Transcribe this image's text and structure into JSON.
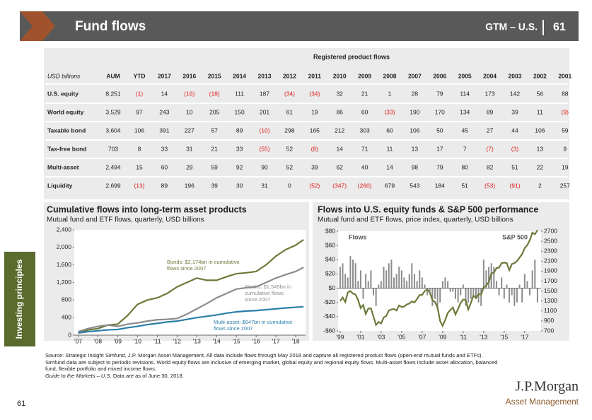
{
  "header": {
    "title": "Fund flows",
    "series": "GTM – U.S.",
    "page": "61"
  },
  "side_tab": "Investing principles",
  "table": {
    "header": "Registered product flows",
    "columns": [
      "USD billions",
      "AUM",
      "YTD",
      "2017",
      "2016",
      "2015",
      "2014",
      "2013",
      "2012",
      "2011",
      "2010",
      "2009",
      "2008",
      "2007",
      "2006",
      "2005",
      "2004",
      "2003",
      "2002",
      "2001"
    ],
    "rows": [
      [
        "U.S. equity",
        "8,251",
        "(1)",
        "14",
        "(16)",
        "(18)",
        "111",
        "187",
        "(34)",
        "(34)",
        "32",
        "21",
        "1",
        "28",
        "79",
        "114",
        "173",
        "142",
        "56",
        "88"
      ],
      [
        "World equity",
        "3,529",
        "97",
        "243",
        "10",
        "205",
        "150",
        "201",
        "61",
        "19",
        "86",
        "60",
        "(33)",
        "190",
        "170",
        "134",
        "89",
        "39",
        "11",
        "(9)"
      ],
      [
        "Taxable bond",
        "3,604",
        "106",
        "391",
        "227",
        "57",
        "89",
        "(10)",
        "298",
        "165",
        "212",
        "303",
        "60",
        "106",
        "50",
        "45",
        "27",
        "44",
        "106",
        "59"
      ],
      [
        "Tax-free bond",
        "703",
        "8",
        "33",
        "31",
        "21",
        "33",
        "(55)",
        "52",
        "(8)",
        "14",
        "71",
        "11",
        "13",
        "17",
        "7",
        "(7)",
        "(3)",
        "13",
        "9"
      ],
      [
        "Multi-asset",
        "2,494",
        "15",
        "60",
        "29",
        "59",
        "92",
        "90",
        "52",
        "39",
        "62",
        "40",
        "14",
        "98",
        "79",
        "80",
        "82",
        "51",
        "22",
        "19"
      ],
      [
        "Liquidity",
        "2,699",
        "(13)",
        "89",
        "196",
        "39",
        "30",
        "31",
        "0",
        "(52)",
        "(347)",
        "(260)",
        "679",
        "543",
        "184",
        "51",
        "(53)",
        "(91)",
        "2",
        "257"
      ]
    ]
  },
  "chart_data": [
    {
      "type": "line",
      "title": "Cumulative flows into long-term asset products",
      "subtitle": "Mutual fund and ETF flows, quarterly, USD billions",
      "x": [
        2007,
        2007.5,
        2008,
        2008.5,
        2009,
        2009.5,
        2010,
        2010.5,
        2011,
        2011.5,
        2012,
        2012.5,
        2013,
        2013.5,
        2014,
        2014.5,
        2015,
        2015.5,
        2016,
        2016.5,
        2017,
        2017.5,
        2018,
        2018.4
      ],
      "series": [
        {
          "name": "Bonds",
          "color": "#6b7a3a",
          "values": [
            50,
            120,
            150,
            230,
            250,
            450,
            700,
            800,
            850,
            950,
            1100,
            1200,
            1300,
            1250,
            1250,
            1330,
            1400,
            1420,
            1450,
            1600,
            1800,
            1950,
            2050,
            2174
          ]
        },
        {
          "name": "Stocks",
          "color": "#8c8c8c",
          "values": [
            80,
            150,
            200,
            230,
            200,
            250,
            280,
            320,
            350,
            360,
            380,
            480,
            600,
            720,
            850,
            950,
            1050,
            1080,
            1100,
            1200,
            1300,
            1380,
            1450,
            1545
          ]
        },
        {
          "name": "Multi-asset",
          "color": "#2a7fa8",
          "values": [
            50,
            80,
            100,
            120,
            130,
            170,
            200,
            240,
            270,
            300,
            320,
            360,
            400,
            430,
            460,
            500,
            530,
            550,
            560,
            580,
            600,
            620,
            635,
            647
          ]
        }
      ],
      "annotations": [
        [
          "Bonds: $2,174bn in cumulative",
          "flows since 2007"
        ],
        [
          "Stocks: $1,545bn in",
          "cumulative flows",
          "since 2007"
        ],
        [
          "Multi-asset: $647bn in cumulative",
          "flows since 2007"
        ]
      ],
      "xlim": [
        2006.8,
        2018.5
      ],
      "xticks": [
        {
          "value": 2007,
          "label": "'07"
        },
        {
          "value": 2008,
          "label": "'08"
        },
        {
          "value": 2009,
          "label": "'09"
        },
        {
          "value": 2010,
          "label": "'10"
        },
        {
          "value": 2011,
          "label": "'11"
        },
        {
          "value": 2012,
          "label": "'12"
        },
        {
          "value": 2013,
          "label": "'13"
        },
        {
          "value": 2014,
          "label": "'14"
        },
        {
          "value": 2015,
          "label": "'15"
        },
        {
          "value": 2016,
          "label": "'16"
        },
        {
          "value": 2017,
          "label": "'17"
        },
        {
          "value": 2018,
          "label": "'18"
        }
      ],
      "ylim": [
        0,
        2400
      ],
      "yticks": [
        0,
        400,
        800,
        {
          "value": 1200,
          "label": "1,200"
        },
        {
          "value": 1600,
          "label": "1,600"
        },
        {
          "value": 2000,
          "label": "2,000"
        },
        {
          "value": 2400,
          "label": "2,400"
        }
      ]
    },
    {
      "type": "bar",
      "title": "Flows into U.S. equity funds & S&P 500 performance",
      "subtitle": "Mutual fund and ETF flows, price index, quarterly, USD billions",
      "x": [
        1999,
        1999.25,
        1999.5,
        1999.75,
        2000,
        2000.25,
        2000.5,
        2000.75,
        2001,
        2001.25,
        2001.5,
        2001.75,
        2002,
        2002.25,
        2002.5,
        2002.75,
        2003,
        2003.25,
        2003.5,
        2003.75,
        2004,
        2004.25,
        2004.5,
        2004.75,
        2005,
        2005.25,
        2005.5,
        2005.75,
        2006,
        2006.25,
        2006.5,
        2006.75,
        2007,
        2007.25,
        2007.5,
        2007.75,
        2008,
        2008.25,
        2008.5,
        2008.75,
        2009,
        2009.25,
        2009.5,
        2009.75,
        2010,
        2010.25,
        2010.5,
        2010.75,
        2011,
        2011.25,
        2011.5,
        2011.75,
        2012,
        2012.25,
        2012.5,
        2012.75,
        2013,
        2013.25,
        2013.5,
        2013.75,
        2014,
        2014.25,
        2014.5,
        2014.75,
        2015,
        2015.25,
        2015.5,
        2015.75,
        2016,
        2016.25,
        2016.5,
        2016.75,
        2017,
        2017.25,
        2017.5,
        2017.75,
        2018,
        2018.25
      ],
      "series": [
        {
          "name": "Flows",
          "color": "#8c8c8c",
          "axis": "y",
          "values": [
            30,
            35,
            20,
            15,
            45,
            40,
            35,
            10,
            25,
            -15,
            20,
            10,
            25,
            -10,
            -25,
            5,
            10,
            30,
            25,
            35,
            40,
            15,
            20,
            30,
            25,
            15,
            10,
            20,
            35,
            20,
            10,
            25,
            15,
            5,
            -10,
            -5,
            -25,
            -15,
            -30,
            -20,
            10,
            15,
            10,
            -5,
            -5,
            -15,
            -20,
            -10,
            5,
            -25,
            -20,
            -15,
            -10,
            -15,
            -20,
            -25,
            40,
            25,
            30,
            35,
            30,
            10,
            -10,
            15,
            -15,
            5,
            -20,
            -10,
            -25,
            -20,
            5,
            -20,
            20,
            10,
            -10,
            25,
            40,
            -20
          ]
        },
        {
          "name": "S&P 500",
          "color": "#6b7a3a",
          "axis": "y2",
          "type": "line",
          "values": [
            1300,
            1370,
            1280,
            1470,
            1500,
            1450,
            1430,
            1320,
            1160,
            1220,
            1040,
            1150,
            1150,
            990,
            820,
            880,
            850,
            970,
            1000,
            1110,
            1130,
            1140,
            1110,
            1210,
            1180,
            1190,
            1230,
            1250,
            1290,
            1270,
            1340,
            1420,
            1420,
            1500,
            1530,
            1470,
            1320,
            1280,
            1170,
            900,
            800,
            920,
            1060,
            1120,
            1170,
            1030,
            1140,
            1260,
            1330,
            1320,
            1130,
            1260,
            1410,
            1360,
            1440,
            1430,
            1570,
            1610,
            1680,
            1850,
            1870,
            1960,
            1970,
            2060,
            2070,
            2060,
            1920,
            2040,
            2060,
            2100,
            2170,
            2240,
            2360,
            2420,
            2520,
            2670,
            2640,
            2720
          ]
        }
      ],
      "xlim": [
        1998.8,
        2018.6
      ],
      "xticks": [
        {
          "value": 1999,
          "label": "'99"
        },
        {
          "value": 2001,
          "label": "'01"
        },
        {
          "value": 2003,
          "label": "'03"
        },
        {
          "value": 2005,
          "label": "'05"
        },
        {
          "value": 2007,
          "label": "'07"
        },
        {
          "value": 2009,
          "label": "'09"
        },
        {
          "value": 2011,
          "label": "'11"
        },
        {
          "value": 2013,
          "label": "'13"
        },
        {
          "value": 2015,
          "label": "'15"
        },
        {
          "value": 2017,
          "label": "'17"
        }
      ],
      "ylim": [
        -60,
        80
      ],
      "yticks": [
        {
          "value": -60,
          "label": "-$60"
        },
        {
          "value": -40,
          "label": "-$40"
        },
        {
          "value": -20,
          "label": "-$20"
        },
        {
          "value": 0,
          "label": "$0"
        },
        {
          "value": 20,
          "label": "$20"
        },
        {
          "value": 40,
          "label": "$40"
        },
        {
          "value": 60,
          "label": "$60"
        },
        {
          "value": 80,
          "label": "$80"
        }
      ],
      "y2lim": [
        700,
        2700
      ],
      "y2ticks": [
        700,
        900,
        1100,
        1300,
        1500,
        1700,
        1900,
        2100,
        2300,
        2500,
        2700
      ]
    }
  ],
  "footer": {
    "source": "Source: Strategic Insight Simfund, J.P. Morgan Asset Management. All data include flows through May 2018 and capture all registered product flows (open-end mutual funds and ETFs). Simfund data are subject to periodic revisions. World equity flows are inclusive of emerging market, global equity and regional equity flows. Multi-asset flows include asset allocation, balanced fund, flexible portfolio and mixed income flows.",
    "guide": "Guide to the Markets – U.S.",
    "asof": "Data are as of June 30, 2018.",
    "page": "61"
  },
  "logo": {
    "name": "J.P.Morgan",
    "sub": "Asset Management"
  }
}
